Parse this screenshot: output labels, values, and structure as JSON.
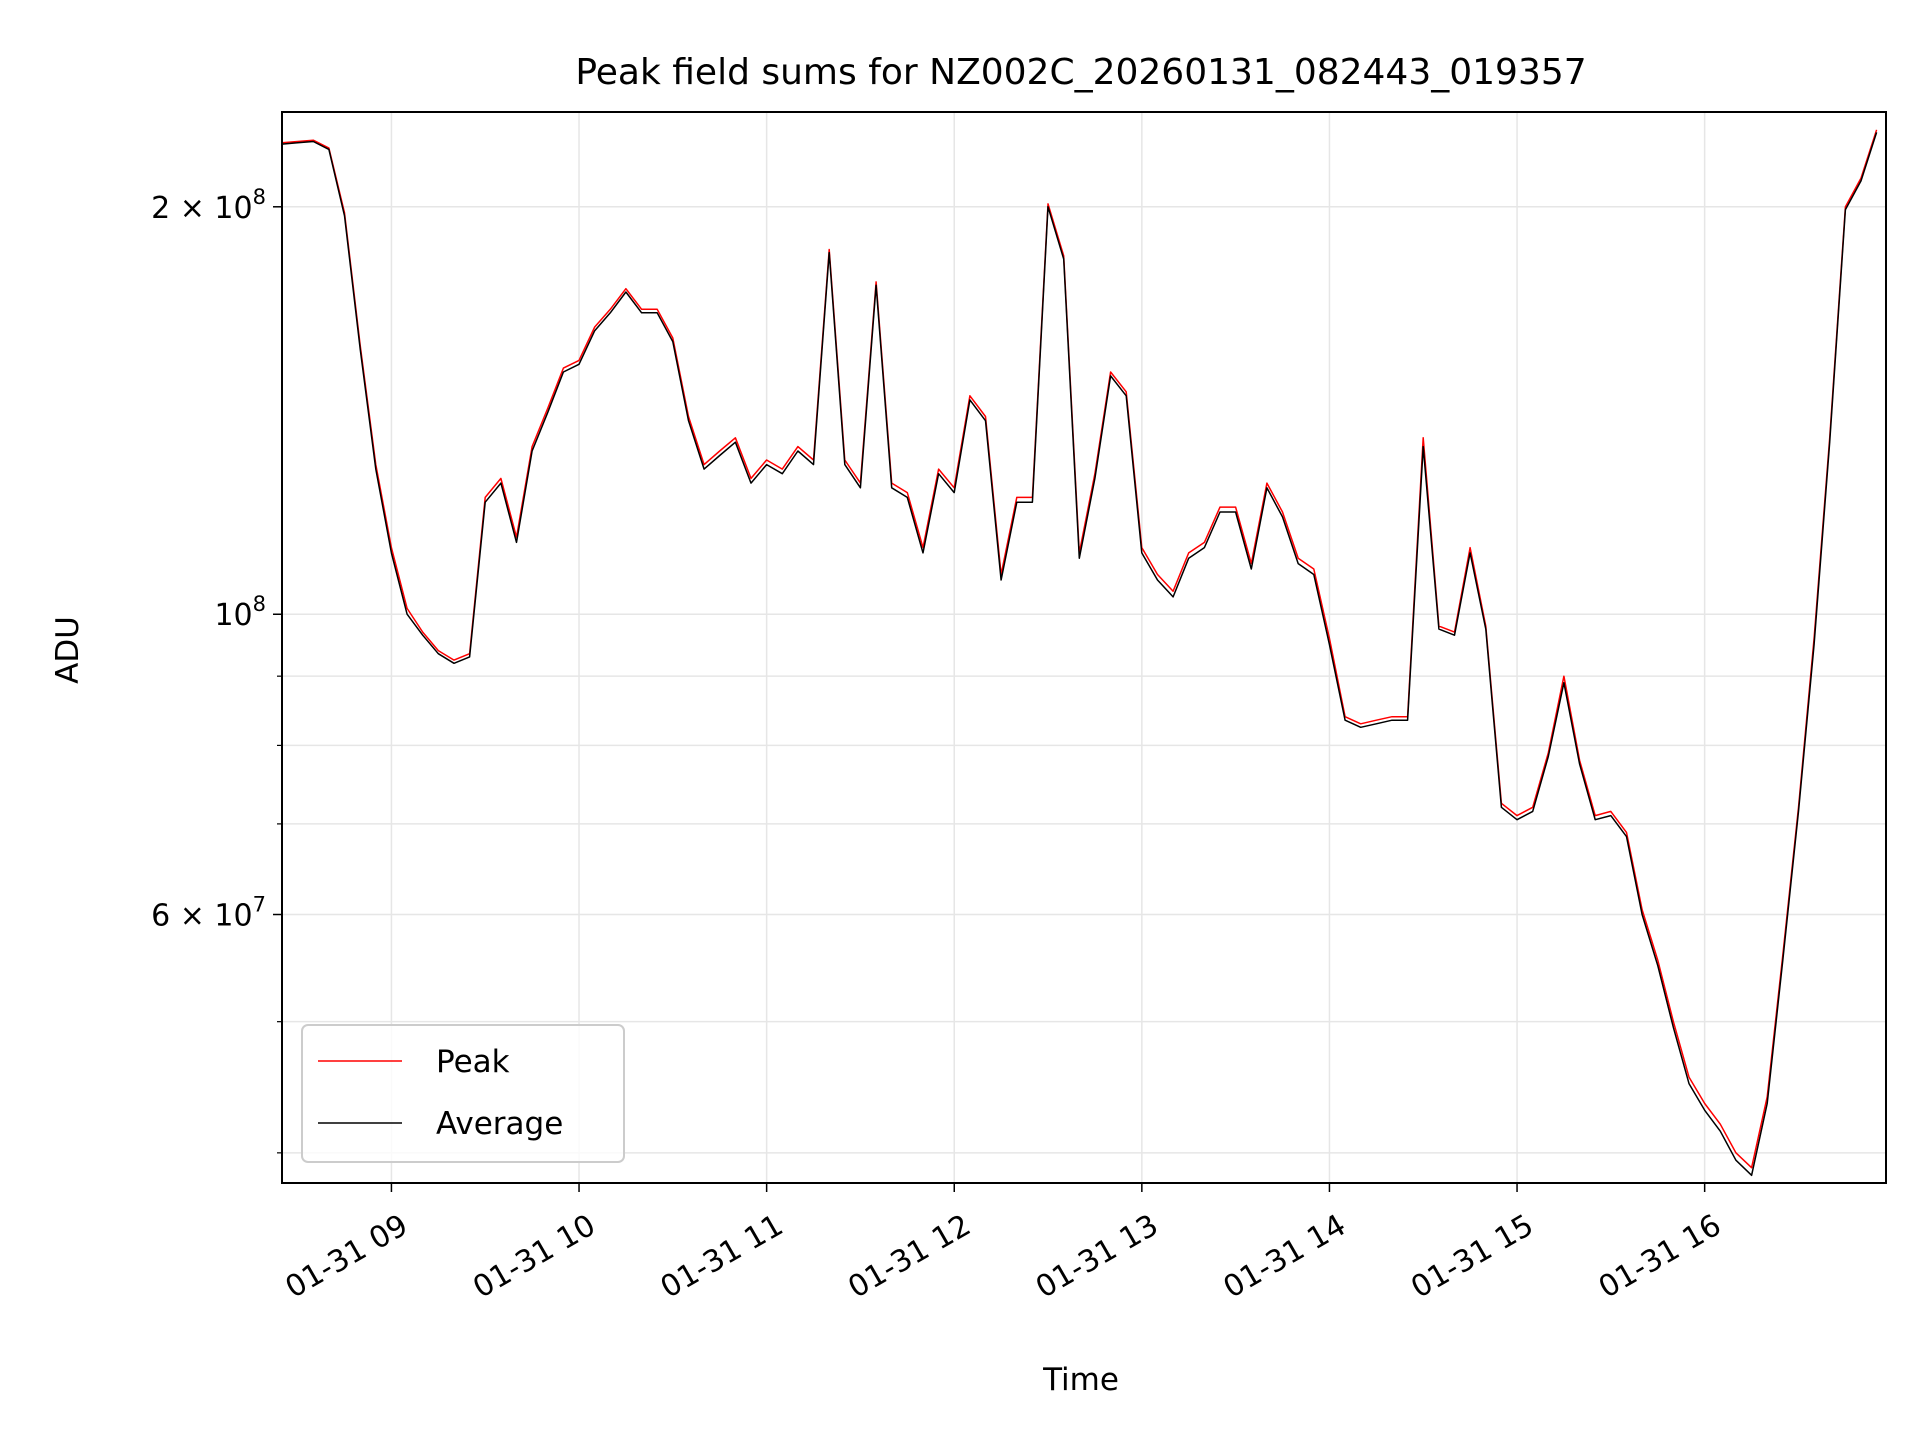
{
  "chart_data": {
    "type": "line",
    "title": "Peak field sums for NZ002C_20260131_082443_019357",
    "xlabel": "Time",
    "ylabel": "ADU",
    "y_scale": "log",
    "ylim": [
      38000000,
      235000000
    ],
    "xlim": [
      "2026-01-31 08:25",
      "2026-01-31 16:58"
    ],
    "grid": true,
    "legend_position": "lower-left",
    "x_ticks": [
      {
        "value": "2026-01-31 09:00",
        "label": "01-31 09"
      },
      {
        "value": "2026-01-31 10:00",
        "label": "01-31 10"
      },
      {
        "value": "2026-01-31 11:00",
        "label": "01-31 11"
      },
      {
        "value": "2026-01-31 12:00",
        "label": "01-31 12"
      },
      {
        "value": "2026-01-31 13:00",
        "label": "01-31 13"
      },
      {
        "value": "2026-01-31 14:00",
        "label": "01-31 14"
      },
      {
        "value": "2026-01-31 15:00",
        "label": "01-31 15"
      },
      {
        "value": "2026-01-31 16:00",
        "label": "01-31 16"
      }
    ],
    "y_ticks": [
      {
        "value": 200000000,
        "label": "2 × 10⁸",
        "mantissa": "2 × 10",
        "exp": "8"
      },
      {
        "value": 100000000,
        "label": "10⁸",
        "mantissa": "10",
        "exp": "8"
      },
      {
        "value": 60000000,
        "label": "6 × 10⁷",
        "mantissa": "6 × 10",
        "exp": "7"
      }
    ],
    "y_minor_ticks": [
      40000000,
      50000000,
      70000000,
      80000000,
      90000000
    ],
    "x": [
      "2026-01-31 08:25",
      "2026-01-31 08:30",
      "2026-01-31 08:35",
      "2026-01-31 08:40",
      "2026-01-31 08:45",
      "2026-01-31 08:50",
      "2026-01-31 08:55",
      "2026-01-31 09:00",
      "2026-01-31 09:05",
      "2026-01-31 09:10",
      "2026-01-31 09:15",
      "2026-01-31 09:20",
      "2026-01-31 09:25",
      "2026-01-31 09:30",
      "2026-01-31 09:35",
      "2026-01-31 09:40",
      "2026-01-31 09:45",
      "2026-01-31 09:50",
      "2026-01-31 09:55",
      "2026-01-31 10:00",
      "2026-01-31 10:05",
      "2026-01-31 10:10",
      "2026-01-31 10:15",
      "2026-01-31 10:20",
      "2026-01-31 10:25",
      "2026-01-31 10:30",
      "2026-01-31 10:35",
      "2026-01-31 10:40",
      "2026-01-31 10:45",
      "2026-01-31 10:50",
      "2026-01-31 10:55",
      "2026-01-31 11:00",
      "2026-01-31 11:05",
      "2026-01-31 11:10",
      "2026-01-31 11:15",
      "2026-01-31 11:20",
      "2026-01-31 11:25",
      "2026-01-31 11:30",
      "2026-01-31 11:35",
      "2026-01-31 11:40",
      "2026-01-31 11:45",
      "2026-01-31 11:50",
      "2026-01-31 11:55",
      "2026-01-31 12:00",
      "2026-01-31 12:05",
      "2026-01-31 12:10",
      "2026-01-31 12:15",
      "2026-01-31 12:20",
      "2026-01-31 12:25",
      "2026-01-31 12:30",
      "2026-01-31 12:35",
      "2026-01-31 12:40",
      "2026-01-31 12:45",
      "2026-01-31 12:50",
      "2026-01-31 12:55",
      "2026-01-31 13:00",
      "2026-01-31 13:05",
      "2026-01-31 13:10",
      "2026-01-31 13:15",
      "2026-01-31 13:20",
      "2026-01-31 13:25",
      "2026-01-31 13:30",
      "2026-01-31 13:35",
      "2026-01-31 13:40",
      "2026-01-31 13:45",
      "2026-01-31 13:50",
      "2026-01-31 13:55",
      "2026-01-31 14:00",
      "2026-01-31 14:05",
      "2026-01-31 14:10",
      "2026-01-31 14:15",
      "2026-01-31 14:20",
      "2026-01-31 14:25",
      "2026-01-31 14:30",
      "2026-01-31 14:35",
      "2026-01-31 14:40",
      "2026-01-31 14:45",
      "2026-01-31 14:50",
      "2026-01-31 14:55",
      "2026-01-31 15:00",
      "2026-01-31 15:05",
      "2026-01-31 15:10",
      "2026-01-31 15:15",
      "2026-01-31 15:20",
      "2026-01-31 15:25",
      "2026-01-31 15:30",
      "2026-01-31 15:35",
      "2026-01-31 15:40",
      "2026-01-31 15:45",
      "2026-01-31 15:50",
      "2026-01-31 15:55",
      "2026-01-31 16:00",
      "2026-01-31 16:05",
      "2026-01-31 16:10",
      "2026-01-31 16:15",
      "2026-01-31 16:20",
      "2026-01-31 16:25",
      "2026-01-31 16:30",
      "2026-01-31 16:35",
      "2026-01-31 16:40",
      "2026-01-31 16:45",
      "2026-01-31 16:50",
      "2026-01-31 16:55"
    ],
    "series": [
      {
        "name": "Peak",
        "color": "#ff0000",
        "values": [
          223000000,
          223500000,
          224000000,
          221000000,
          198000000,
          158000000,
          129000000,
          112000000,
          101000000,
          97000000,
          94000000,
          92500000,
          93500000,
          122000000,
          126000000,
          114000000,
          133000000,
          142000000,
          152000000,
          154000000,
          163000000,
          168000000,
          174000000,
          168000000,
          168000000,
          160000000,
          140000000,
          129000000,
          132000000,
          135000000,
          126000000,
          130000000,
          128000000,
          133000000,
          130000000,
          186000000,
          130000000,
          125000000,
          176000000,
          125000000,
          123000000,
          112000000,
          128000000,
          124000000,
          145000000,
          140000000,
          107000000,
          122000000,
          122000000,
          201000000,
          184000000,
          111000000,
          127000000,
          151000000,
          146000000,
          112000000,
          107000000,
          104000000,
          111000000,
          113000000,
          120000000,
          120000000,
          109000000,
          125000000,
          119000000,
          110000000,
          108000000,
          96000000,
          84000000,
          83000000,
          83500000,
          84000000,
          84000000,
          135000000,
          98000000,
          97000000,
          112000000,
          98000000,
          72500000,
          71000000,
          72000000,
          79000000,
          90000000,
          78000000,
          71000000,
          71500000,
          69000000,
          60500000,
          55500000,
          50000000,
          45500000,
          43500000,
          42000000,
          40000000,
          39000000,
          44000000,
          56000000,
          72000000,
          96000000,
          135000000,
          200000000,
          210000000,
          228000000
        ]
      },
      {
        "name": "Average",
        "color": "#000000",
        "values": [
          222500000,
          223000000,
          223500000,
          220500000,
          197000000,
          157000000,
          128000000,
          111000000,
          100000000,
          96500000,
          93500000,
          92000000,
          93000000,
          121000000,
          125000000,
          113000000,
          132000000,
          141000000,
          151000000,
          153000000,
          162000000,
          167000000,
          173000000,
          167000000,
          167000000,
          159000000,
          139000000,
          128000000,
          131000000,
          134000000,
          125000000,
          129000000,
          127000000,
          132000000,
          129000000,
          185000000,
          129000000,
          124000000,
          175000000,
          124000000,
          122000000,
          111000000,
          127000000,
          123000000,
          144000000,
          139000000,
          106000000,
          121000000,
          121000000,
          200000000,
          183000000,
          110000000,
          126000000,
          150000000,
          145000000,
          111000000,
          106000000,
          103000000,
          110000000,
          112000000,
          119000000,
          119000000,
          108000000,
          124000000,
          118000000,
          109000000,
          107000000,
          95000000,
          83500000,
          82500000,
          83000000,
          83500000,
          83500000,
          133000000,
          97500000,
          96500000,
          111000000,
          97500000,
          72000000,
          70500000,
          71500000,
          78500000,
          89000000,
          77500000,
          70500000,
          71000000,
          68500000,
          60000000,
          55000000,
          49500000,
          45000000,
          43000000,
          41500000,
          39500000,
          38500000,
          43500000,
          55500000,
          71500000,
          95000000,
          134000000,
          199000000,
          209000000,
          227000000
        ]
      }
    ]
  }
}
